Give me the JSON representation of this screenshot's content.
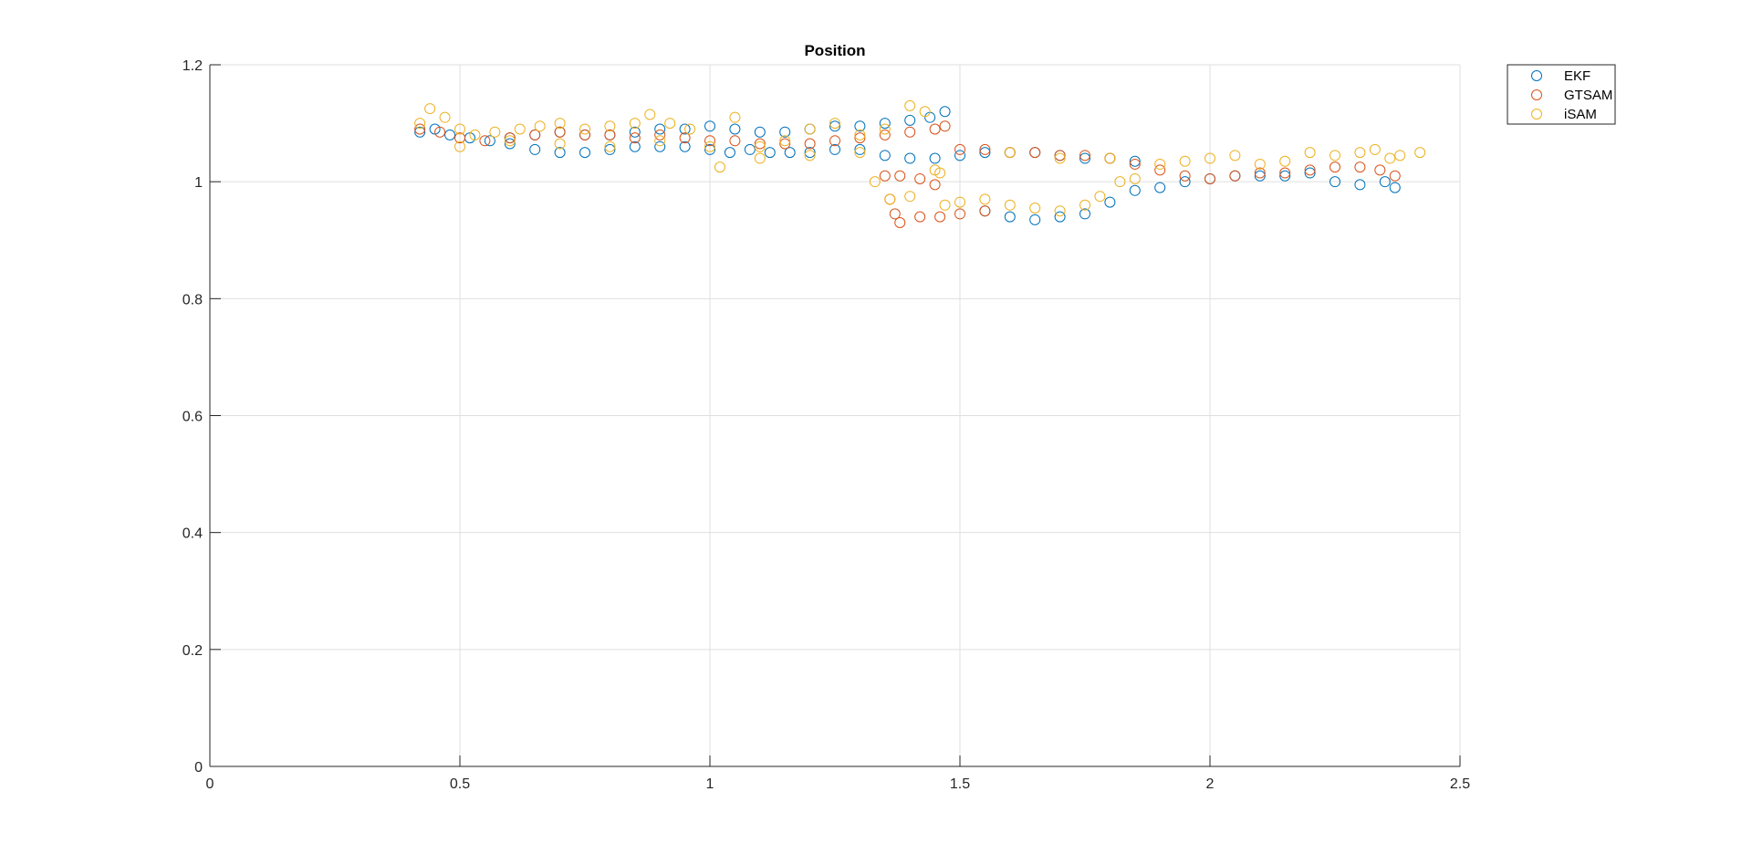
{
  "chart_data": {
    "type": "scatter",
    "title": "Position",
    "xlabel": "",
    "ylabel": "",
    "xlim": [
      0,
      2.5
    ],
    "ylim": [
      0,
      1.2
    ],
    "xticks": [
      "0",
      "0.5",
      "1",
      "1.5",
      "2",
      "2.5"
    ],
    "yticks": [
      "0",
      "0.2",
      "0.4",
      "0.6",
      "0.8",
      "1",
      "1.2"
    ],
    "grid": true,
    "legend_position": "outside-top-right",
    "series": [
      {
        "name": "EKF",
        "color": "#0072BD",
        "marker": "circle-open",
        "points": [
          [
            0.42,
            1.085
          ],
          [
            0.45,
            1.09
          ],
          [
            0.48,
            1.08
          ],
          [
            0.52,
            1.075
          ],
          [
            0.56,
            1.07
          ],
          [
            0.6,
            1.075
          ],
          [
            0.65,
            1.08
          ],
          [
            0.7,
            1.085
          ],
          [
            0.75,
            1.08
          ],
          [
            0.8,
            1.08
          ],
          [
            0.85,
            1.085
          ],
          [
            0.9,
            1.09
          ],
          [
            0.95,
            1.09
          ],
          [
            1.0,
            1.095
          ],
          [
            1.05,
            1.09
          ],
          [
            1.1,
            1.085
          ],
          [
            1.15,
            1.085
          ],
          [
            1.2,
            1.09
          ],
          [
            1.25,
            1.095
          ],
          [
            1.3,
            1.095
          ],
          [
            1.35,
            1.1
          ],
          [
            1.4,
            1.105
          ],
          [
            1.44,
            1.11
          ],
          [
            1.47,
            1.12
          ],
          [
            0.6,
            1.065
          ],
          [
            0.65,
            1.055
          ],
          [
            0.7,
            1.05
          ],
          [
            0.75,
            1.05
          ],
          [
            0.8,
            1.055
          ],
          [
            0.85,
            1.06
          ],
          [
            0.9,
            1.06
          ],
          [
            0.95,
            1.06
          ],
          [
            1.0,
            1.055
          ],
          [
            1.04,
            1.05
          ],
          [
            1.08,
            1.055
          ],
          [
            1.12,
            1.05
          ],
          [
            1.16,
            1.05
          ],
          [
            1.2,
            1.05
          ],
          [
            1.25,
            1.055
          ],
          [
            1.3,
            1.055
          ],
          [
            1.35,
            1.045
          ],
          [
            1.4,
            1.04
          ],
          [
            1.45,
            1.04
          ],
          [
            1.5,
            1.045
          ],
          [
            1.55,
            1.05
          ],
          [
            1.6,
            1.05
          ],
          [
            1.65,
            1.05
          ],
          [
            1.7,
            1.045
          ],
          [
            1.75,
            1.04
          ],
          [
            1.8,
            1.04
          ],
          [
            1.85,
            1.035
          ],
          [
            1.55,
            0.95
          ],
          [
            1.6,
            0.94
          ],
          [
            1.65,
            0.935
          ],
          [
            1.7,
            0.94
          ],
          [
            1.75,
            0.945
          ],
          [
            1.8,
            0.965
          ],
          [
            1.85,
            0.985
          ],
          [
            1.9,
            0.99
          ],
          [
            1.95,
            1.0
          ],
          [
            2.0,
            1.005
          ],
          [
            2.05,
            1.01
          ],
          [
            2.1,
            1.01
          ],
          [
            2.15,
            1.01
          ],
          [
            2.2,
            1.015
          ],
          [
            2.25,
            1.0
          ],
          [
            2.3,
            0.995
          ],
          [
            2.35,
            1.0
          ],
          [
            2.37,
            0.99
          ]
        ]
      },
      {
        "name": "GTSAM",
        "color": "#D95319",
        "marker": "circle-open",
        "points": [
          [
            0.42,
            1.09
          ],
          [
            0.46,
            1.085
          ],
          [
            0.5,
            1.075
          ],
          [
            0.55,
            1.07
          ],
          [
            0.6,
            1.075
          ],
          [
            0.65,
            1.08
          ],
          [
            0.7,
            1.085
          ],
          [
            0.75,
            1.08
          ],
          [
            0.8,
            1.08
          ],
          [
            0.85,
            1.075
          ],
          [
            0.9,
            1.08
          ],
          [
            0.95,
            1.075
          ],
          [
            1.0,
            1.07
          ],
          [
            1.05,
            1.07
          ],
          [
            1.1,
            1.065
          ],
          [
            1.15,
            1.065
          ],
          [
            1.2,
            1.065
          ],
          [
            1.25,
            1.07
          ],
          [
            1.3,
            1.075
          ],
          [
            1.35,
            1.08
          ],
          [
            1.4,
            1.085
          ],
          [
            1.45,
            1.09
          ],
          [
            1.47,
            1.095
          ],
          [
            1.35,
            1.01
          ],
          [
            1.38,
            1.01
          ],
          [
            1.42,
            1.005
          ],
          [
            1.45,
            0.995
          ],
          [
            1.36,
            0.97
          ],
          [
            1.37,
            0.945
          ],
          [
            1.38,
            0.93
          ],
          [
            1.42,
            0.94
          ],
          [
            1.46,
            0.94
          ],
          [
            1.5,
            0.945
          ],
          [
            1.55,
            0.95
          ],
          [
            1.5,
            1.055
          ],
          [
            1.55,
            1.055
          ],
          [
            1.6,
            1.05
          ],
          [
            1.65,
            1.05
          ],
          [
            1.7,
            1.045
          ],
          [
            1.75,
            1.045
          ],
          [
            1.8,
            1.04
          ],
          [
            1.85,
            1.03
          ],
          [
            1.9,
            1.02
          ],
          [
            1.95,
            1.01
          ],
          [
            2.0,
            1.005
          ],
          [
            2.05,
            1.01
          ],
          [
            2.1,
            1.015
          ],
          [
            2.15,
            1.015
          ],
          [
            2.2,
            1.02
          ],
          [
            2.25,
            1.025
          ],
          [
            2.3,
            1.025
          ],
          [
            2.34,
            1.02
          ],
          [
            2.37,
            1.01
          ]
        ]
      },
      {
        "name": "iSAM",
        "color": "#EDB120",
        "marker": "circle-open",
        "points": [
          [
            0.42,
            1.1
          ],
          [
            0.44,
            1.125
          ],
          [
            0.47,
            1.11
          ],
          [
            0.5,
            1.09
          ],
          [
            0.53,
            1.08
          ],
          [
            0.57,
            1.085
          ],
          [
            0.62,
            1.09
          ],
          [
            0.66,
            1.095
          ],
          [
            0.7,
            1.1
          ],
          [
            0.75,
            1.09
          ],
          [
            0.8,
            1.095
          ],
          [
            0.85,
            1.1
          ],
          [
            0.88,
            1.115
          ],
          [
            0.92,
            1.1
          ],
          [
            0.96,
            1.09
          ],
          [
            1.02,
            1.025
          ],
          [
            1.05,
            1.11
          ],
          [
            1.1,
            1.06
          ],
          [
            1.15,
            1.07
          ],
          [
            1.2,
            1.09
          ],
          [
            1.25,
            1.1
          ],
          [
            1.3,
            1.08
          ],
          [
            1.35,
            1.09
          ],
          [
            1.4,
            1.13
          ],
          [
            1.43,
            1.12
          ],
          [
            0.5,
            1.06
          ],
          [
            0.6,
            1.07
          ],
          [
            0.7,
            1.065
          ],
          [
            0.8,
            1.06
          ],
          [
            0.9,
            1.07
          ],
          [
            1.0,
            1.06
          ],
          [
            1.1,
            1.04
          ],
          [
            1.2,
            1.045
          ],
          [
            1.3,
            1.05
          ],
          [
            1.33,
            1.0
          ],
          [
            1.36,
            0.97
          ],
          [
            1.4,
            0.975
          ],
          [
            1.45,
            1.02
          ],
          [
            1.46,
            1.015
          ],
          [
            1.47,
            0.96
          ],
          [
            1.5,
            0.965
          ],
          [
            1.55,
            0.97
          ],
          [
            1.6,
            0.96
          ],
          [
            1.65,
            0.955
          ],
          [
            1.7,
            0.95
          ],
          [
            1.75,
            0.96
          ],
          [
            1.78,
            0.975
          ],
          [
            1.82,
            1.0
          ],
          [
            1.85,
            1.005
          ],
          [
            1.6,
            1.05
          ],
          [
            1.7,
            1.04
          ],
          [
            1.8,
            1.04
          ],
          [
            1.9,
            1.03
          ],
          [
            1.95,
            1.035
          ],
          [
            2.0,
            1.04
          ],
          [
            2.05,
            1.045
          ],
          [
            2.1,
            1.03
          ],
          [
            2.15,
            1.035
          ],
          [
            2.2,
            1.05
          ],
          [
            2.25,
            1.045
          ],
          [
            2.3,
            1.05
          ],
          [
            2.33,
            1.055
          ],
          [
            2.36,
            1.04
          ],
          [
            2.38,
            1.045
          ],
          [
            2.42,
            1.05
          ]
        ]
      }
    ]
  }
}
